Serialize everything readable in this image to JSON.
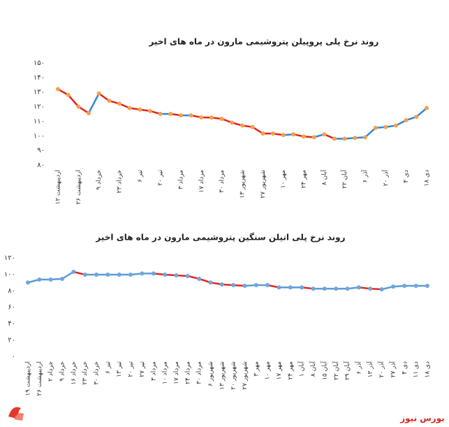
{
  "chart_data": [
    {
      "type": "line",
      "title": "روند نرخ پلی پروپیلن پتروشیمی مارون در ماه های اخیر",
      "categories": [
        "۱۲ اردیبهشت",
        null,
        "۲۶ اردیبهشت",
        null,
        "۹ خرداد",
        null,
        "۲۳ خرداد",
        null,
        "۶ تیر",
        null,
        "۲۰ تیر",
        null,
        "۳ مرداد",
        null,
        "۱۷ مرداد",
        null,
        "۳۰ مرداد",
        null,
        "۱۳ شهریور",
        null,
        "۲۷ شهریور",
        null,
        "۱۰ مهر",
        null,
        "۲۴ مهر",
        null,
        "۸ آبان",
        null,
        "۲۲ آبان",
        null,
        "۶ آذر",
        null,
        "۲۰ آذر",
        null,
        "۴ دی",
        null,
        "۱۸ دی"
      ],
      "values": [
        132,
        128,
        120,
        115.5,
        129,
        124,
        122,
        119,
        118,
        117,
        115,
        115,
        114,
        114,
        112.6,
        112.5,
        111.6,
        109,
        107,
        106,
        101.6,
        101.5,
        100.5,
        101,
        99.5,
        99,
        101,
        98,
        98,
        98.5,
        99,
        105.4,
        106,
        107,
        110.7,
        113,
        119
      ],
      "ylim": [
        80,
        150
      ],
      "yticks": [
        {
          "value": 80,
          "label": "۸۰"
        },
        {
          "value": 90,
          "label": "۹۰"
        },
        {
          "value": 100,
          "label": "۱۰۰"
        },
        {
          "value": 110,
          "label": "۱۱۰"
        },
        {
          "value": 120,
          "label": "۱۲۰"
        },
        {
          "value": 130,
          "label": "۱۳۰"
        },
        {
          "value": 140,
          "label": "۱۴۰"
        },
        {
          "value": 150,
          "label": "۱۵۰"
        }
      ],
      "point_color": "#f4a04a",
      "rise_color": "#2f86d6",
      "fall_color": "#e3231c",
      "grid": false
    },
    {
      "type": "line",
      "title": "روند نرخ پلی اتیلن سنگین پتروشیمی مارون در ماه های اخیر",
      "categories": [
        "۱۹ اردیبهشت",
        "۲۶ اردیبهشت",
        "۲ خرداد",
        "۹ خرداد",
        "۱۶ خرداد",
        "۲۳ خرداد",
        "۳۰ خرداد",
        "۶ تیر",
        "۱۳ تیر",
        "۲۰ تیر",
        "۲۷ تیر",
        "۳ مرداد",
        "۱۰ مرداد",
        "۱۷ مرداد",
        "۲۴ مرداد",
        "۳۰ مرداد",
        "۶ شهریور",
        "۱۳ شهریور",
        "۲۰ شهریور",
        "۲۷ شهریور",
        "۳ مهر",
        "۱۰ مهر",
        "۱۷ مهر",
        "۲۴ مهر",
        "۱ آبان",
        "۸ آبان",
        "۱۵ آبان",
        "۲۲ آبان",
        "۲۹ آبان",
        "۶ آذر",
        "۱۳ آذر",
        "۲۰ آذر",
        "۲۷ آذر",
        "۴ دی",
        "۱۱ دی",
        "۱۸ دی"
      ],
      "values": [
        90,
        93.6,
        93.6,
        94.5,
        103,
        99.6,
        99.6,
        99.6,
        99.6,
        99.6,
        101,
        101,
        99.6,
        98.7,
        97.9,
        94.5,
        90,
        87.7,
        86.8,
        86,
        86.8,
        86.8,
        84,
        84,
        84,
        82.5,
        82.5,
        82.5,
        82.5,
        84,
        82.5,
        81.7,
        85,
        86,
        86,
        86
      ],
      "ylim": [
        0,
        120
      ],
      "yticks": [
        {
          "value": 0,
          "label": "۰"
        },
        {
          "value": 20,
          "label": "۲۰"
        },
        {
          "value": 40,
          "label": "۴۰"
        },
        {
          "value": 60,
          "label": "۶۰"
        },
        {
          "value": 80,
          "label": "۸۰"
        },
        {
          "value": 100,
          "label": "۱۰۰"
        },
        {
          "value": 120,
          "label": "۱۲۰"
        }
      ],
      "point_color": "#6ea6de",
      "rise_color": "#5b9bd5",
      "fall_color": "#e3231c",
      "grid": false
    }
  ],
  "watermark": "بورس نیوز"
}
